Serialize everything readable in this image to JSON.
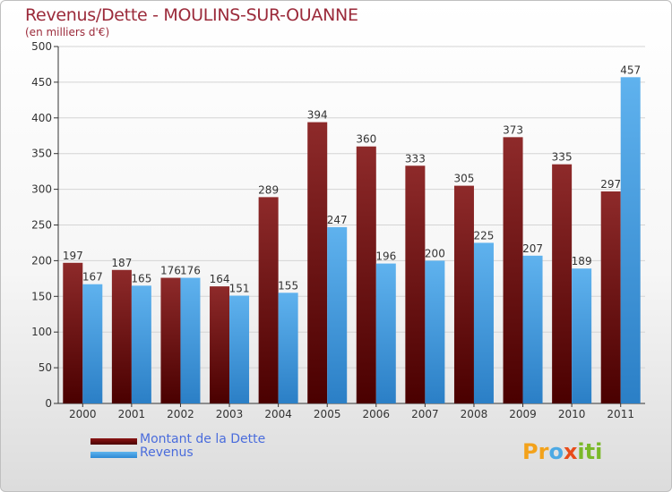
{
  "chart_data": {
    "type": "bar",
    "title": "Revenus/Dette - MOULINS-SUR-OUANNE",
    "subtitle": "(en milliers d'€)",
    "categories": [
      "2000",
      "2001",
      "2002",
      "2003",
      "2004",
      "2005",
      "2006",
      "2007",
      "2008",
      "2009",
      "2010",
      "2011"
    ],
    "series": [
      {
        "name": "Montant de la Dette",
        "values": [
          197,
          187,
          176,
          164,
          289,
          394,
          360,
          333,
          305,
          373,
          335,
          297
        ],
        "color": "#7a1a1a"
      },
      {
        "name": "Revenus",
        "values": [
          167,
          165,
          176,
          151,
          155,
          247,
          196,
          200,
          225,
          207,
          189,
          457
        ],
        "color": "#4fa8e8"
      }
    ],
    "ylim": [
      0,
      500
    ],
    "yticks": [
      0,
      50,
      100,
      150,
      200,
      250,
      300,
      350,
      400,
      450,
      500
    ],
    "grid": true,
    "legend_position": "bottom-left"
  },
  "logo": {
    "text": "Proxiti",
    "parts": [
      "Pr",
      "o",
      "x",
      "iti"
    ]
  }
}
